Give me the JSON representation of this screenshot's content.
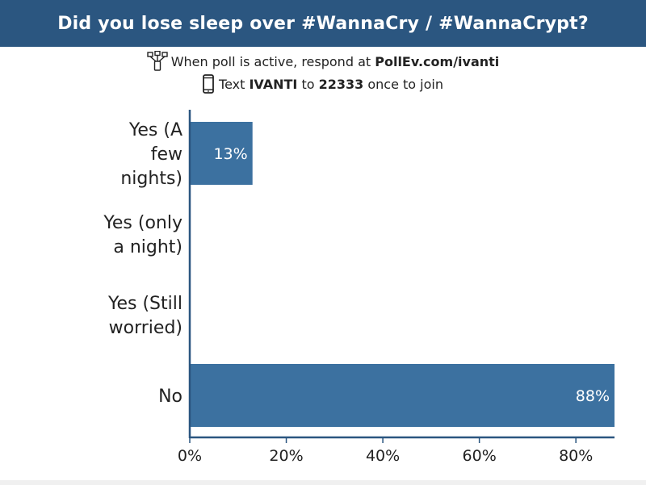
{
  "header": {
    "title": "Did you lose sleep over #WannaCry / #WannaCrypt?"
  },
  "instructions": {
    "line1_prefix": "When poll is active, respond at ",
    "line1_url": "PollEv.com/ivanti",
    "line2_prefix": "Text ",
    "line2_keyword": "IVANTI",
    "line2_middle": " to ",
    "line2_number": "22333",
    "line2_suffix": " once to join"
  },
  "colors": {
    "header_bg": "#2b5680",
    "bar": "#3c71a0",
    "axis": "#2b5680"
  },
  "icons": {
    "line1": "network-icon",
    "line2": "phone-icon"
  },
  "chart_data": {
    "type": "bar",
    "orientation": "horizontal",
    "categories": [
      [
        "Yes (A",
        "few",
        "nights)"
      ],
      [
        "Yes (only",
        "a night)"
      ],
      [
        "Yes (Still",
        "worried)"
      ],
      [
        "No"
      ]
    ],
    "values": [
      13,
      0,
      0,
      88
    ],
    "data_labels": [
      "13%",
      "",
      "",
      "88%"
    ],
    "xlim": [
      0,
      88
    ],
    "xticks": [
      0,
      20,
      40,
      60,
      80
    ],
    "xtick_labels": [
      "0%",
      "20%",
      "40%",
      "60%",
      "80%"
    ],
    "grid": false
  }
}
